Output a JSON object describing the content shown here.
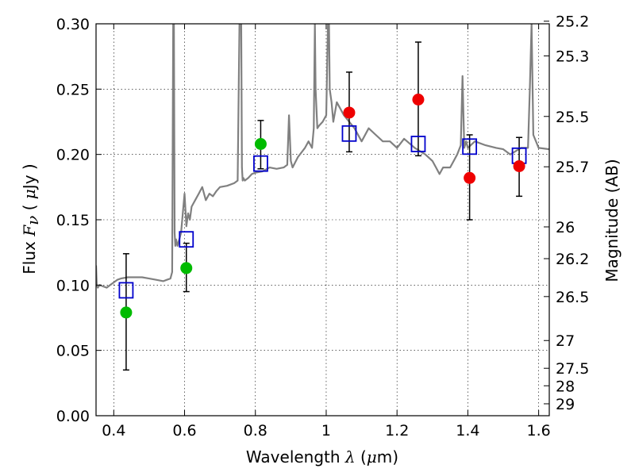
{
  "chart_data": {
    "type": "scatter",
    "xlabel_parts": [
      "Wavelength  ",
      "λ",
      " (",
      "μ",
      "m)"
    ],
    "ylabel_parts": [
      "Flux  ",
      "F",
      "ν",
      "  ( ",
      "μ",
      "Jy )"
    ],
    "y2label": "Magnitude (AB)",
    "xlim": [
      0.35,
      1.63
    ],
    "ylim": [
      0.0,
      0.3
    ],
    "grid": true,
    "x_ticks": [
      0.4,
      0.6,
      0.8,
      1.0,
      1.2,
      1.4,
      1.6
    ],
    "x_tick_labels": [
      "0.4",
      "0.6",
      "0.8",
      "1",
      "1.2",
      "1.4",
      "1.6"
    ],
    "y_ticks": [
      0.0,
      0.05,
      0.1,
      0.15,
      0.2,
      0.25,
      0.3
    ],
    "y_tick_labels": [
      "0.00",
      "0.05",
      "0.10",
      "0.15",
      "0.20",
      "0.25",
      "0.30"
    ],
    "mag_ticks": [
      "25.2",
      "25.3",
      "25.5",
      "25.7",
      "26",
      "26.2",
      "26.5",
      "27",
      "27.5",
      "28",
      "29"
    ],
    "colors": {
      "spectrum": "#808080",
      "model": "#0000cc",
      "green": "#00bb00",
      "red": "#ee0000",
      "errorbar": "#000000"
    },
    "series": [
      {
        "role": "spectrum",
        "x": [
          0.35,
          0.352,
          0.355,
          0.36,
          0.37,
          0.38,
          0.39,
          0.4,
          0.41,
          0.42,
          0.44,
          0.46,
          0.48,
          0.5,
          0.52,
          0.54,
          0.55,
          0.56,
          0.565,
          0.568,
          0.57,
          0.572,
          0.574,
          0.576,
          0.58,
          0.59,
          0.6,
          0.605,
          0.61,
          0.615,
          0.62,
          0.63,
          0.64,
          0.65,
          0.66,
          0.67,
          0.68,
          0.69,
          0.7,
          0.72,
          0.74,
          0.75,
          0.755,
          0.76,
          0.762,
          0.764,
          0.766,
          0.77,
          0.78,
          0.79,
          0.8,
          0.82,
          0.84,
          0.86,
          0.88,
          0.89,
          0.895,
          0.9,
          0.905,
          0.92,
          0.94,
          0.95,
          0.96,
          0.965,
          0.968,
          0.97,
          0.975,
          0.98,
          0.99,
          1.0,
          1.005,
          1.008,
          1.01,
          1.015,
          1.02,
          1.03,
          1.05,
          1.08,
          1.1,
          1.12,
          1.14,
          1.16,
          1.18,
          1.2,
          1.22,
          1.25,
          1.28,
          1.3,
          1.31,
          1.32,
          1.33,
          1.34,
          1.35,
          1.36,
          1.37,
          1.38,
          1.385,
          1.39,
          1.395,
          1.4,
          1.42,
          1.45,
          1.48,
          1.5,
          1.52,
          1.55,
          1.57,
          1.575,
          1.58,
          1.585,
          1.6,
          1.63
        ],
        "values": [
          0.115,
          0.1,
          0.098,
          0.1,
          0.099,
          0.098,
          0.1,
          0.102,
          0.104,
          0.105,
          0.106,
          0.106,
          0.106,
          0.105,
          0.104,
          0.103,
          0.104,
          0.105,
          0.11,
          0.3,
          0.3,
          0.14,
          0.13,
          0.135,
          0.13,
          0.14,
          0.17,
          0.145,
          0.155,
          0.15,
          0.16,
          0.165,
          0.17,
          0.175,
          0.165,
          0.17,
          0.168,
          0.172,
          0.175,
          0.176,
          0.178,
          0.18,
          0.3,
          0.3,
          0.19,
          0.18,
          0.182,
          0.18,
          0.182,
          0.185,
          0.186,
          0.187,
          0.19,
          0.189,
          0.19,
          0.192,
          0.23,
          0.195,
          0.19,
          0.198,
          0.205,
          0.21,
          0.205,
          0.22,
          0.3,
          0.25,
          0.22,
          0.222,
          0.225,
          0.23,
          0.3,
          0.3,
          0.25,
          0.24,
          0.225,
          0.24,
          0.23,
          0.22,
          0.21,
          0.22,
          0.215,
          0.21,
          0.21,
          0.205,
          0.212,
          0.205,
          0.2,
          0.195,
          0.19,
          0.185,
          0.19,
          0.19,
          0.19,
          0.195,
          0.2,
          0.207,
          0.26,
          0.205,
          0.21,
          0.205,
          0.21,
          0.207,
          0.205,
          0.204,
          0.2,
          0.205,
          0.205,
          0.25,
          0.3,
          0.215,
          0.205,
          0.204
        ]
      },
      {
        "role": "model",
        "marker": "square",
        "x": [
          0.435,
          0.605,
          0.815,
          1.065,
          1.26,
          1.405,
          1.545
        ],
        "values": [
          0.096,
          0.135,
          0.193,
          0.216,
          0.208,
          0.206,
          0.199
        ]
      },
      {
        "role": "green",
        "marker": "circle",
        "x": [
          0.435,
          0.605,
          0.815
        ],
        "values": [
          0.079,
          0.113,
          0.208
        ]
      },
      {
        "role": "red",
        "marker": "circle",
        "x": [
          1.065,
          1.26,
          1.405,
          1.545
        ],
        "values": [
          0.232,
          0.242,
          0.182,
          0.191
        ]
      }
    ],
    "errorbars": [
      {
        "x": 0.435,
        "low": 0.035,
        "high": 0.124
      },
      {
        "x": 0.605,
        "low": 0.095,
        "high": 0.132
      },
      {
        "x": 0.815,
        "low": 0.189,
        "high": 0.226
      },
      {
        "x": 1.065,
        "low": 0.202,
        "high": 0.263
      },
      {
        "x": 1.26,
        "low": 0.199,
        "high": 0.286
      },
      {
        "x": 1.405,
        "low": 0.15,
        "high": 0.215
      },
      {
        "x": 1.545,
        "low": 0.168,
        "high": 0.213
      }
    ]
  }
}
